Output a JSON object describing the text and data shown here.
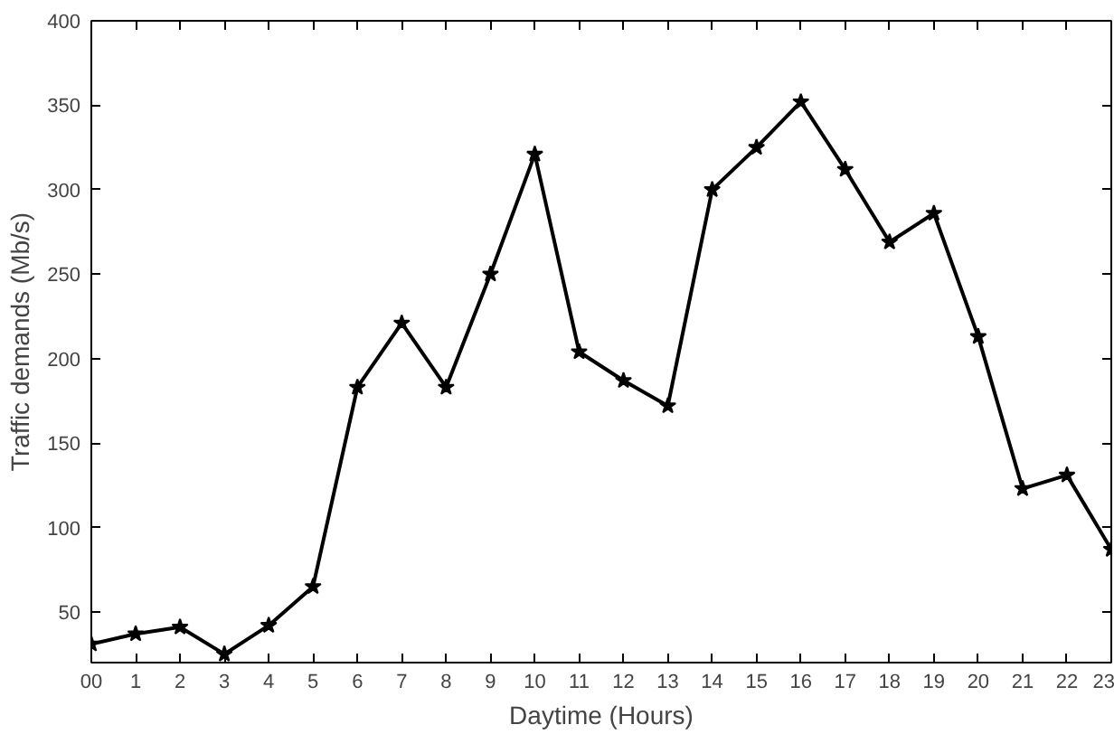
{
  "chart_data": {
    "type": "line",
    "xlabel": "Daytime (Hours)",
    "ylabel": "Traffic demands (Mb/s)",
    "x": [
      0,
      1,
      2,
      3,
      4,
      5,
      6,
      7,
      8,
      9,
      10,
      11,
      12,
      13,
      14,
      15,
      16,
      17,
      18,
      19,
      20,
      21,
      22,
      23
    ],
    "series": [
      {
        "color": "#000000",
        "values": [
          31,
          37,
          41,
          25,
          42,
          65,
          183,
          221,
          183,
          250,
          321,
          204,
          187,
          172,
          300,
          325,
          352,
          312,
          269,
          286,
          213,
          123,
          131,
          87
        ]
      }
    ],
    "xlim": [
      0,
      23
    ],
    "ylim": [
      20,
      400
    ],
    "xticks": [
      {
        "value": 0,
        "label": "00"
      },
      1,
      2,
      3,
      4,
      5,
      6,
      7,
      8,
      9,
      10,
      11,
      12,
      13,
      14,
      15,
      16,
      17,
      18,
      19,
      20,
      21,
      22,
      23
    ],
    "yticks": [
      50,
      100,
      150,
      200,
      250,
      300,
      350,
      400
    ],
    "grid": false,
    "marker": "star",
    "line_style": "solid"
  }
}
